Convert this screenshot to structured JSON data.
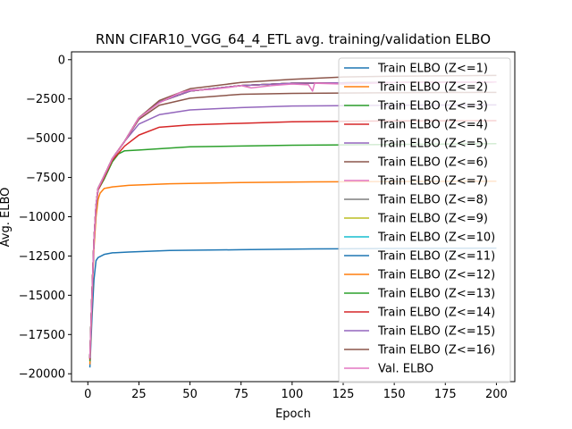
{
  "chart_data": {
    "type": "line",
    "title": "RNN CIFAR10_VGG_64_4_ETL avg. training/validation ELBO",
    "xlabel": "Epoch",
    "ylabel": "Avg. ELBO",
    "xlim": [
      -8,
      209
    ],
    "ylim": [
      -20500,
      500
    ],
    "xticks": [
      0,
      25,
      50,
      75,
      100,
      125,
      150,
      175,
      200
    ],
    "yticks": [
      0,
      -2500,
      -5000,
      -7500,
      -10000,
      -12500,
      -15000,
      -17500,
      -20000
    ],
    "ytick_labels": [
      "0",
      "−2500",
      "−5000",
      "−7500",
      "−10000",
      "−12500",
      "−15000",
      "−17500",
      "−20000"
    ],
    "grid": false,
    "legend_position": "top-right",
    "series": [
      {
        "name": "Train ELBO (Z<=1)",
        "color": "#1f77b4",
        "points": [
          [
            1,
            -19600
          ],
          [
            2,
            -16500
          ],
          [
            3,
            -14000
          ],
          [
            4,
            -12800
          ],
          [
            5,
            -12600
          ],
          [
            8,
            -12400
          ],
          [
            12,
            -12300
          ],
          [
            20,
            -12250
          ],
          [
            40,
            -12150
          ],
          [
            75,
            -12100
          ],
          [
            110,
            -12050
          ],
          [
            150,
            -12020
          ],
          [
            200,
            -12000
          ]
        ]
      },
      {
        "name": "Train ELBO (Z<=2)",
        "color": "#ff7f0e",
        "points": [
          [
            1,
            -19400
          ],
          [
            2,
            -15500
          ],
          [
            3,
            -12000
          ],
          [
            4,
            -10000
          ],
          [
            5,
            -8900
          ],
          [
            6,
            -8500
          ],
          [
            8,
            -8200
          ],
          [
            12,
            -8100
          ],
          [
            20,
            -8000
          ],
          [
            40,
            -7900
          ],
          [
            75,
            -7820
          ],
          [
            110,
            -7780
          ],
          [
            150,
            -7760
          ],
          [
            200,
            -7740
          ]
        ]
      },
      {
        "name": "Train ELBO (Z<=3)",
        "color": "#2ca02c",
        "points": [
          [
            1,
            -19200
          ],
          [
            2,
            -15000
          ],
          [
            3,
            -11500
          ],
          [
            4,
            -9500
          ],
          [
            5,
            -8300
          ],
          [
            8,
            -7600
          ],
          [
            12,
            -6500
          ],
          [
            15,
            -6000
          ],
          [
            18,
            -5800
          ],
          [
            25,
            -5750
          ],
          [
            50,
            -5550
          ],
          [
            100,
            -5450
          ],
          [
            150,
            -5400
          ],
          [
            200,
            -5350
          ]
        ]
      },
      {
        "name": "Train ELBO (Z<=4)",
        "color": "#d62728",
        "points": [
          [
            1,
            -19100
          ],
          [
            2,
            -15000
          ],
          [
            3,
            -11500
          ],
          [
            4,
            -9400
          ],
          [
            5,
            -8300
          ],
          [
            8,
            -7500
          ],
          [
            12,
            -6400
          ],
          [
            18,
            -5500
          ],
          [
            25,
            -4800
          ],
          [
            35,
            -4300
          ],
          [
            50,
            -4150
          ],
          [
            75,
            -4050
          ],
          [
            100,
            -3950
          ],
          [
            150,
            -3900
          ],
          [
            200,
            -3880
          ]
        ]
      },
      {
        "name": "Train ELBO (Z<=5)",
        "color": "#9467bd",
        "points": [
          [
            1,
            -19000
          ],
          [
            2,
            -15000
          ],
          [
            3,
            -11500
          ],
          [
            4,
            -9300
          ],
          [
            5,
            -8200
          ],
          [
            8,
            -7400
          ],
          [
            12,
            -6300
          ],
          [
            18,
            -5200
          ],
          [
            25,
            -4100
          ],
          [
            35,
            -3500
          ],
          [
            50,
            -3200
          ],
          [
            75,
            -3050
          ],
          [
            100,
            -2950
          ],
          [
            150,
            -2900
          ],
          [
            200,
            -2880
          ]
        ]
      },
      {
        "name": "Train ELBO (Z<=6)",
        "color": "#8c564b",
        "points": [
          [
            1,
            -19000
          ],
          [
            2,
            -15000
          ],
          [
            3,
            -11500
          ],
          [
            4,
            -9300
          ],
          [
            5,
            -8200
          ],
          [
            8,
            -7400
          ],
          [
            12,
            -6300
          ],
          [
            18,
            -5200
          ],
          [
            25,
            -3800
          ],
          [
            35,
            -2900
          ],
          [
            50,
            -2450
          ],
          [
            75,
            -2200
          ],
          [
            100,
            -2150
          ],
          [
            150,
            -2100
          ],
          [
            200,
            -2080
          ]
        ]
      },
      {
        "name": "Train ELBO (Z<=7)",
        "color": "#e377c2",
        "points": [
          [
            1,
            -19000
          ],
          [
            2,
            -15000
          ],
          [
            3,
            -11500
          ],
          [
            4,
            -9300
          ],
          [
            5,
            -8200
          ],
          [
            8,
            -7400
          ],
          [
            12,
            -6300
          ],
          [
            18,
            -5200
          ],
          [
            25,
            -3700
          ],
          [
            35,
            -2700
          ],
          [
            50,
            -2000
          ],
          [
            75,
            -1650
          ],
          [
            100,
            -1500
          ],
          [
            150,
            -1450
          ],
          [
            200,
            -1420
          ]
        ]
      },
      {
        "name": "Train ELBO (Z<=8)",
        "color": "#7f7f7f",
        "points": [
          [
            1,
            -19000
          ],
          [
            2,
            -15000
          ],
          [
            3,
            -11500
          ],
          [
            4,
            -9300
          ],
          [
            5,
            -8200
          ],
          [
            8,
            -7400
          ],
          [
            12,
            -6300
          ],
          [
            18,
            -5200
          ],
          [
            25,
            -3700
          ],
          [
            35,
            -2700
          ],
          [
            50,
            -2000
          ],
          [
            75,
            -1650
          ],
          [
            100,
            -1500
          ],
          [
            150,
            -1450
          ],
          [
            200,
            -1420
          ]
        ]
      },
      {
        "name": "Train ELBO (Z<=9)",
        "color": "#bcbd22",
        "points": [
          [
            1,
            -19000
          ],
          [
            2,
            -15000
          ],
          [
            3,
            -11500
          ],
          [
            4,
            -9300
          ],
          [
            5,
            -8200
          ],
          [
            8,
            -7400
          ],
          [
            12,
            -6300
          ],
          [
            18,
            -5200
          ],
          [
            25,
            -3700
          ],
          [
            35,
            -2700
          ],
          [
            50,
            -2000
          ],
          [
            75,
            -1650
          ],
          [
            100,
            -1500
          ],
          [
            150,
            -1450
          ],
          [
            200,
            -1420
          ]
        ]
      },
      {
        "name": "Train ELBO (Z<=10)",
        "color": "#17becf",
        "points": [
          [
            1,
            -19000
          ],
          [
            2,
            -15000
          ],
          [
            3,
            -11500
          ],
          [
            4,
            -9300
          ],
          [
            5,
            -8200
          ],
          [
            8,
            -7400
          ],
          [
            12,
            -6300
          ],
          [
            18,
            -5200
          ],
          [
            25,
            -3700
          ],
          [
            35,
            -2700
          ],
          [
            50,
            -2000
          ],
          [
            75,
            -1650
          ],
          [
            100,
            -1500
          ],
          [
            150,
            -1450
          ],
          [
            200,
            -1420
          ]
        ]
      },
      {
        "name": "Train ELBO (Z<=11)",
        "color": "#1f77b4",
        "points": [
          [
            1,
            -19000
          ],
          [
            2,
            -15000
          ],
          [
            3,
            -11500
          ],
          [
            4,
            -9300
          ],
          [
            5,
            -8200
          ],
          [
            8,
            -7400
          ],
          [
            12,
            -6300
          ],
          [
            18,
            -5200
          ],
          [
            25,
            -3700
          ],
          [
            35,
            -2700
          ],
          [
            50,
            -2000
          ],
          [
            75,
            -1650
          ],
          [
            100,
            -1500
          ],
          [
            150,
            -1450
          ],
          [
            200,
            -1420
          ]
        ]
      },
      {
        "name": "Train ELBO (Z<=12)",
        "color": "#ff7f0e",
        "points": [
          [
            1,
            -19000
          ],
          [
            2,
            -15000
          ],
          [
            3,
            -11500
          ],
          [
            4,
            -9300
          ],
          [
            5,
            -8200
          ],
          [
            8,
            -7400
          ],
          [
            12,
            -6300
          ],
          [
            18,
            -5200
          ],
          [
            25,
            -3700
          ],
          [
            35,
            -2700
          ],
          [
            50,
            -2000
          ],
          [
            75,
            -1650
          ],
          [
            100,
            -1500
          ],
          [
            150,
            -1450
          ],
          [
            200,
            -1420
          ]
        ]
      },
      {
        "name": "Train ELBO (Z<=13)",
        "color": "#2ca02c",
        "points": [
          [
            1,
            -19000
          ],
          [
            2,
            -15000
          ],
          [
            3,
            -11500
          ],
          [
            4,
            -9300
          ],
          [
            5,
            -8200
          ],
          [
            8,
            -7400
          ],
          [
            12,
            -6300
          ],
          [
            18,
            -5200
          ],
          [
            25,
            -3700
          ],
          [
            35,
            -2700
          ],
          [
            50,
            -2000
          ],
          [
            75,
            -1650
          ],
          [
            100,
            -1500
          ],
          [
            150,
            -1450
          ],
          [
            200,
            -1420
          ]
        ]
      },
      {
        "name": "Train ELBO (Z<=14)",
        "color": "#d62728",
        "points": [
          [
            1,
            -19000
          ],
          [
            2,
            -15000
          ],
          [
            3,
            -11500
          ],
          [
            4,
            -9300
          ],
          [
            5,
            -8200
          ],
          [
            8,
            -7400
          ],
          [
            12,
            -6300
          ],
          [
            18,
            -5200
          ],
          [
            25,
            -3700
          ],
          [
            35,
            -2700
          ],
          [
            50,
            -2000
          ],
          [
            75,
            -1650
          ],
          [
            100,
            -1500
          ],
          [
            150,
            -1450
          ],
          [
            200,
            -1420
          ]
        ]
      },
      {
        "name": "Train ELBO (Z<=15)",
        "color": "#9467bd",
        "points": [
          [
            1,
            -19000
          ],
          [
            2,
            -15000
          ],
          [
            3,
            -11500
          ],
          [
            4,
            -9300
          ],
          [
            5,
            -8200
          ],
          [
            8,
            -7400
          ],
          [
            12,
            -6300
          ],
          [
            18,
            -5200
          ],
          [
            25,
            -3700
          ],
          [
            35,
            -2700
          ],
          [
            50,
            -2000
          ],
          [
            75,
            -1650
          ],
          [
            100,
            -1500
          ],
          [
            150,
            -1450
          ],
          [
            200,
            -1420
          ]
        ]
      },
      {
        "name": "Train ELBO (Z<=16)",
        "color": "#8c564b",
        "points": [
          [
            1,
            -19000
          ],
          [
            2,
            -15000
          ],
          [
            3,
            -11500
          ],
          [
            4,
            -9300
          ],
          [
            5,
            -8200
          ],
          [
            8,
            -7400
          ],
          [
            12,
            -6300
          ],
          [
            18,
            -5200
          ],
          [
            25,
            -3700
          ],
          [
            35,
            -2600
          ],
          [
            50,
            -1850
          ],
          [
            75,
            -1450
          ],
          [
            100,
            -1250
          ],
          [
            125,
            -1100
          ],
          [
            150,
            -1050
          ],
          [
            200,
            -1000
          ]
        ]
      },
      {
        "name": "Val. ELBO",
        "color": "#e377c2",
        "points": [
          [
            1,
            -19000
          ],
          [
            2,
            -15000
          ],
          [
            3,
            -11500
          ],
          [
            4,
            -9300
          ],
          [
            5,
            -8200
          ],
          [
            8,
            -7400
          ],
          [
            12,
            -6300
          ],
          [
            18,
            -5200
          ],
          [
            25,
            -3700
          ],
          [
            35,
            -2750
          ],
          [
            45,
            -2100
          ],
          [
            50,
            -1950
          ],
          [
            60,
            -1900
          ],
          [
            70,
            -1750
          ],
          [
            75,
            -1650
          ],
          [
            80,
            -1800
          ],
          [
            90,
            -1650
          ],
          [
            100,
            -1550
          ],
          [
            108,
            -1600
          ],
          [
            110,
            -2000
          ],
          [
            111,
            -1500
          ],
          [
            125,
            -1550
          ],
          [
            140,
            -1500
          ],
          [
            150,
            -1450
          ],
          [
            175,
            -1450
          ],
          [
            200,
            -1420
          ]
        ]
      }
    ]
  }
}
